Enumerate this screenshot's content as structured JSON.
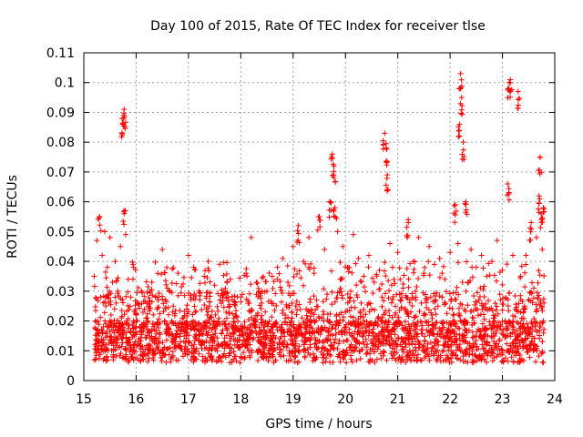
{
  "chart_data": {
    "type": "scatter",
    "title": "Day 100 of 2015, Rate Of TEC Index for receiver tlse",
    "xlabel": "GPS time / hours",
    "ylabel": "ROTI / TECUs",
    "xlim": [
      15,
      24
    ],
    "ylim": [
      0,
      0.11
    ],
    "xticks": [
      15,
      16,
      17,
      18,
      19,
      20,
      21,
      22,
      23,
      24
    ],
    "xtick_labels": [
      "15",
      "16",
      "17",
      "18",
      "19",
      "20",
      "21",
      "22",
      "23",
      "24"
    ],
    "yticks": [
      0,
      0.01,
      0.02,
      0.03,
      0.04,
      0.05,
      0.06,
      0.07,
      0.08,
      0.09,
      0.1,
      0.11
    ],
    "ytick_labels": [
      "0",
      "0.01",
      "0.02",
      "0.03",
      "0.04",
      "0.05",
      "0.06",
      "0.07",
      "0.08",
      "0.09",
      "0.1",
      "0.11"
    ],
    "grid": true,
    "marker": "+",
    "series": [
      {
        "name": "ROTI",
        "color": "#ff0000",
        "x": [
          15.2,
          15.22,
          15.25,
          15.28,
          15.3,
          15.32,
          15.35,
          15.38,
          15.4,
          15.42,
          15.45,
          15.48,
          15.5,
          15.52,
          15.55,
          15.58,
          15.6,
          15.62,
          15.65,
          15.68,
          15.7,
          15.72,
          15.75,
          15.76,
          15.77,
          15.78,
          15.8,
          15.82,
          15.85,
          15.88,
          15.9,
          15.95,
          16.0,
          16.05,
          16.1,
          16.15,
          16.2,
          16.25,
          16.3,
          16.35,
          16.4,
          16.45,
          16.5,
          16.55,
          16.6,
          16.65,
          16.7,
          16.75,
          16.8,
          16.85,
          16.9,
          16.95,
          17.0,
          17.05,
          17.1,
          17.15,
          17.2,
          17.25,
          17.3,
          17.35,
          17.4,
          17.45,
          17.5,
          17.55,
          17.6,
          17.65,
          17.7,
          17.75,
          17.8,
          17.85,
          17.9,
          17.95,
          18.0,
          18.05,
          18.1,
          18.15,
          18.2,
          18.25,
          18.3,
          18.35,
          18.4,
          18.45,
          18.5,
          18.55,
          18.6,
          18.65,
          18.7,
          18.75,
          18.8,
          18.85,
          18.9,
          18.95,
          19.0,
          19.05,
          19.1,
          19.15,
          19.2,
          19.25,
          19.3,
          19.35,
          19.4,
          19.45,
          19.5,
          19.55,
          19.6,
          19.65,
          19.7,
          19.75,
          19.78,
          19.8,
          19.85,
          19.9,
          19.95,
          20.0,
          20.05,
          20.1,
          20.15,
          20.2,
          20.25,
          20.3,
          20.35,
          20.4,
          20.45,
          20.5,
          20.55,
          20.6,
          20.65,
          20.7,
          20.75,
          20.78,
          20.8,
          20.85,
          20.9,
          20.95,
          21.0,
          21.05,
          21.1,
          21.15,
          21.2,
          21.25,
          21.3,
          21.35,
          21.4,
          21.45,
          21.5,
          21.55,
          21.6,
          21.65,
          21.7,
          21.75,
          21.8,
          21.85,
          21.9,
          21.95,
          22.0,
          22.05,
          22.1,
          22.15,
          22.18,
          22.2,
          22.22,
          22.25,
          22.3,
          22.35,
          22.4,
          22.45,
          22.5,
          22.55,
          22.6,
          22.65,
          22.7,
          22.75,
          22.8,
          22.85,
          22.9,
          22.95,
          23.0,
          23.05,
          23.1,
          23.13,
          23.15,
          23.2,
          23.25,
          23.3,
          23.35,
          23.4,
          23.45,
          23.5,
          23.55,
          23.6,
          23.65,
          23.7,
          23.72,
          23.74,
          23.76,
          23.78
        ],
        "y": [
          0.035,
          0.02,
          0.047,
          0.015,
          0.055,
          0.028,
          0.042,
          0.012,
          0.05,
          0.025,
          0.038,
          0.018,
          0.048,
          0.022,
          0.033,
          0.014,
          0.04,
          0.026,
          0.03,
          0.016,
          0.045,
          0.021,
          0.086,
          0.088,
          0.091,
          0.057,
          0.049,
          0.02,
          0.034,
          0.012,
          0.028,
          0.038,
          0.022,
          0.014,
          0.03,
          0.018,
          0.026,
          0.012,
          0.033,
          0.009,
          0.024,
          0.016,
          0.044,
          0.02,
          0.031,
          0.011,
          0.023,
          0.015,
          0.036,
          0.013,
          0.021,
          0.018,
          0.042,
          0.028,
          0.038,
          0.015,
          0.03,
          0.012,
          0.035,
          0.018,
          0.025,
          0.014,
          0.032,
          0.01,
          0.027,
          0.019,
          0.029,
          0.012,
          0.034,
          0.016,
          0.022,
          0.011,
          0.028,
          0.015,
          0.036,
          0.01,
          0.048,
          0.02,
          0.033,
          0.013,
          0.026,
          0.017,
          0.03,
          0.011,
          0.035,
          0.019,
          0.038,
          0.014,
          0.041,
          0.022,
          0.033,
          0.015,
          0.045,
          0.025,
          0.052,
          0.018,
          0.04,
          0.024,
          0.048,
          0.02,
          0.036,
          0.027,
          0.055,
          0.021,
          0.044,
          0.029,
          0.06,
          0.076,
          0.072,
          0.058,
          0.05,
          0.034,
          0.045,
          0.023,
          0.038,
          0.03,
          0.049,
          0.02,
          0.041,
          0.026,
          0.035,
          0.018,
          0.042,
          0.024,
          0.033,
          0.015,
          0.037,
          0.028,
          0.083,
          0.078,
          0.069,
          0.046,
          0.038,
          0.022,
          0.043,
          0.027,
          0.031,
          0.014,
          0.054,
          0.023,
          0.04,
          0.019,
          0.048,
          0.026,
          0.036,
          0.017,
          0.045,
          0.022,
          0.039,
          0.013,
          0.041,
          0.028,
          0.034,
          0.016,
          0.043,
          0.02,
          0.059,
          0.046,
          0.086,
          0.103,
          0.095,
          0.08,
          0.06,
          0.033,
          0.044,
          0.021,
          0.038,
          0.027,
          0.042,
          0.015,
          0.035,
          0.024,
          0.04,
          0.018,
          0.047,
          0.029,
          0.037,
          0.02,
          0.066,
          0.1,
          0.101,
          0.042,
          0.024,
          0.097,
          0.035,
          0.019,
          0.042,
          0.027,
          0.053,
          0.031,
          0.048,
          0.062,
          0.075,
          0.056,
          0.044,
          0.058
        ],
        "background_band_note": "dense cluster of points between approximately 0.005 and 0.03 across the full time range"
      }
    ]
  }
}
